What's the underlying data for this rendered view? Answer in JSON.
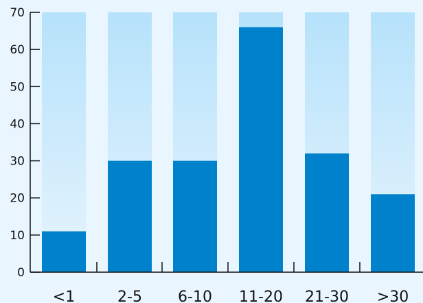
{
  "chart_data": {
    "type": "bar",
    "title": "",
    "xlabel": "",
    "ylabel": "",
    "categories": [
      "<1",
      "2-5",
      "6-10",
      "11-20",
      "21-30",
      ">30"
    ],
    "values": [
      11,
      30,
      30,
      66,
      32,
      21
    ],
    "background_bar_value": 70,
    "ylim": [
      0,
      70
    ],
    "yticks": [
      0,
      10,
      20,
      30,
      40,
      50,
      60,
      70
    ],
    "grid": false,
    "legend": "none",
    "colors": {
      "background": "#eaf6ff",
      "bar_fill": "#0081cc",
      "bar_track": "#b6e2fb",
      "axis": "#111111"
    }
  }
}
